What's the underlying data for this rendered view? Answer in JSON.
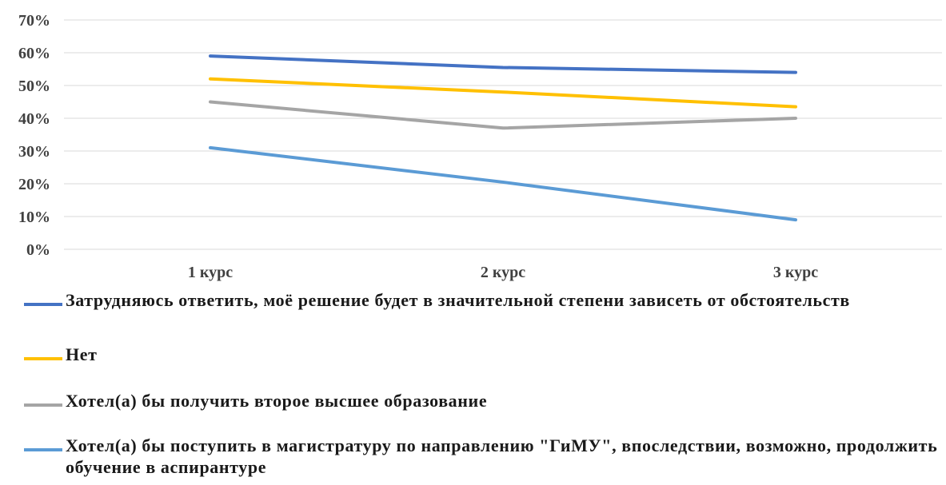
{
  "chart_data": {
    "type": "line",
    "categories": [
      "1 курс",
      "2 курс",
      "3 курс"
    ],
    "y_ticks": [
      "0%",
      "10%",
      "20%",
      "30%",
      "40%",
      "50%",
      "60%",
      "70%"
    ],
    "ylim": [
      0,
      70
    ],
    "grid": true,
    "legend_position": "bottom",
    "series": [
      {
        "name": "Затрудняюсь ответить, моё решение будет в значительной степени зависеть от обстоятельств",
        "values": [
          59,
          55.5,
          54
        ],
        "color": "#4472C4"
      },
      {
        "name": "Нет",
        "values": [
          52,
          48,
          43.5
        ],
        "color": "#FFC000"
      },
      {
        "name": "Хотел(а) бы получить второе высшее образование",
        "values": [
          45,
          37,
          40
        ],
        "color": "#A5A5A5"
      },
      {
        "name": "Хотел(а) бы поступить в магистратуру по направлению \"ГиМУ\", впоследствии, возможно, продолжить обучение в аспирантуре",
        "values": [
          31,
          20.5,
          9
        ],
        "color": "#5B9BD5"
      }
    ]
  }
}
